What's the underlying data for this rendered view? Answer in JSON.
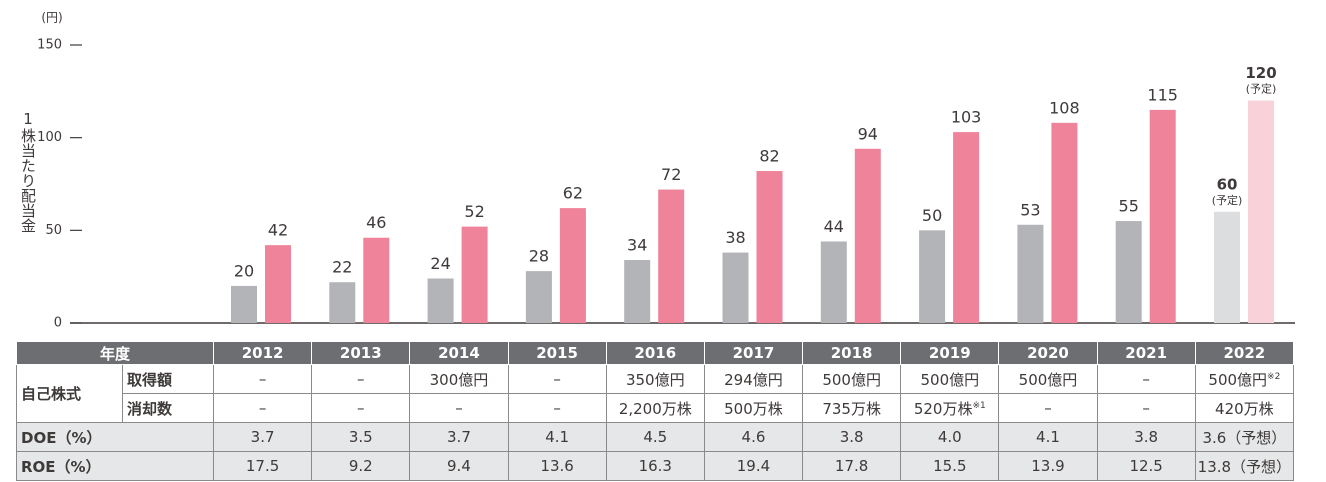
{
  "chart_data": {
    "type": "bar",
    "unit_label": "(円)",
    "ylabel": "1株当たり配当金",
    "categories": [
      "2012",
      "2013",
      "2014",
      "2015",
      "2016",
      "2017",
      "2018",
      "2019",
      "2020",
      "2021",
      "2022"
    ],
    "series": [
      {
        "values": [
          20,
          22,
          24,
          28,
          34,
          38,
          44,
          50,
          53,
          55,
          60
        ],
        "colors": [
          "#b3b4b7",
          "#b3b4b7",
          "#b3b4b7",
          "#b3b4b7",
          "#b3b4b7",
          "#b3b4b7",
          "#b3b4b7",
          "#b3b4b7",
          "#b3b4b7",
          "#b3b4b7",
          "#dcdddf"
        ]
      },
      {
        "values": [
          42,
          46,
          52,
          62,
          72,
          82,
          94,
          103,
          108,
          115,
          120
        ],
        "colors": [
          "#ee8399",
          "#ee8399",
          "#ee8399",
          "#ee8399",
          "#ee8399",
          "#ee8399",
          "#ee8399",
          "#ee8399",
          "#ee8399",
          "#ee8399",
          "#f9d1d9"
        ]
      }
    ],
    "annotations": [
      {
        "text": "(予定)",
        "series": 0,
        "index": 10
      },
      {
        "text": "(予定)",
        "series": 1,
        "index": 10
      }
    ],
    "ylim": [
      0,
      150
    ],
    "yticks": [
      0,
      50,
      100,
      150
    ]
  },
  "table": {
    "header": "年度",
    "rows": [
      {
        "group": "自己株式",
        "label": "取得額",
        "cells": [
          "–",
          "–",
          "300億円",
          "–",
          "350億円",
          "294億円",
          "500億円",
          "500億円",
          "500億円",
          "–",
          {
            "text": "500億円",
            "note": "※2"
          }
        ]
      },
      {
        "label": "消却数",
        "cells": [
          "–",
          "–",
          "–",
          "–",
          "2,200万株",
          "500万株",
          "735万株",
          {
            "text": "520万株",
            "note": "※1"
          },
          "–",
          "–",
          "420万株"
        ]
      },
      {
        "label": "DOE（%）",
        "cells": [
          "3.7",
          "3.5",
          "3.7",
          "4.1",
          "4.5",
          "4.6",
          "3.8",
          "4.0",
          "4.1",
          "3.8",
          "3.6（予想）"
        ]
      },
      {
        "label": "ROE（%）",
        "cells": [
          "17.5",
          "9.2",
          "9.4",
          "13.6",
          "16.3",
          "19.4",
          "17.8",
          "15.5",
          "13.9",
          "12.5",
          "13.8（予想）"
        ]
      }
    ]
  }
}
